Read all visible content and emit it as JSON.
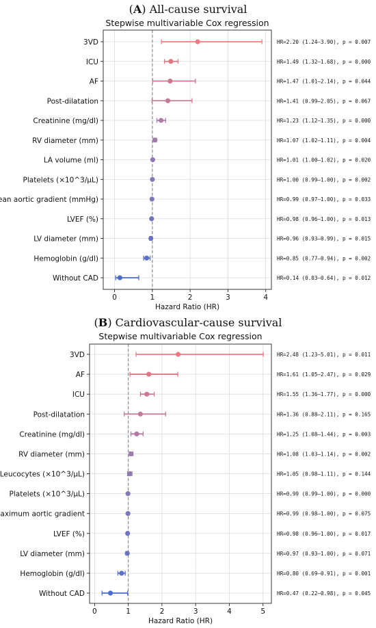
{
  "chart_data": [
    {
      "type": "forest",
      "panel_letter": "A",
      "panel_title": "All-cause survival",
      "title": "Stepwise multivariable Cox regression",
      "xlabel": "Hazard Ratio (HR)",
      "xlim": [
        -0.3,
        4.15
      ],
      "xticks": [
        "0",
        "1",
        "2",
        "3",
        "4"
      ],
      "reference_line": 1,
      "grid": true,
      "rows": [
        {
          "label": "3VD",
          "hr": 2.2,
          "lo": 1.24,
          "hi": 3.9,
          "text": "HR=2.20 (1.24–3.90), p = 0.007",
          "color": "#ee7b7f"
        },
        {
          "label": "ICU",
          "hr": 1.49,
          "lo": 1.32,
          "hi": 1.68,
          "text": "HR=1.49 (1.32–1.68), p = 0.000",
          "color": "#e07685"
        },
        {
          "label": "AF",
          "hr": 1.47,
          "lo": 1.01,
          "hi": 2.14,
          "text": "HR=1.47 (1.01–2.14), p = 0.044",
          "color": "#d07790"
        },
        {
          "label": "Post-dilatation",
          "hr": 1.41,
          "lo": 0.99,
          "hi": 2.05,
          "text": "HR=1.41 (0.99–2.05), p = 0.067",
          "color": "#c27a98"
        },
        {
          "label": "Creatinine (mg/dl)",
          "hr": 1.23,
          "lo": 1.12,
          "hi": 1.35,
          "text": "HR=1.23 (1.12–1.35), p = 0.000",
          "color": "#b07aa2"
        },
        {
          "label": "RV diameter (mm)",
          "hr": 1.07,
          "lo": 1.02,
          "hi": 1.11,
          "text": "HR=1.07 (1.02–1.11), p = 0.004",
          "color": "#a07aaa"
        },
        {
          "label": "LA volume (ml)",
          "hr": 1.01,
          "lo": 1.0,
          "hi": 1.02,
          "text": "HR=1.01 (1.00–1.02), p = 0.020",
          "color": "#8f79b1"
        },
        {
          "label": "Platelets (×10^3/μL)",
          "hr": 1.0,
          "lo": 0.99,
          "hi": 1.0,
          "text": "HR=1.00 (0.99–1.00), p = 0.002",
          "color": "#8478b5"
        },
        {
          "label": "Mean aortic gradient (mmHg)",
          "hr": 0.99,
          "lo": 0.97,
          "hi": 1.0,
          "text": "HR=0.99 (0.97–1.00), p = 0.033",
          "color": "#7a77ba"
        },
        {
          "label": "LVEF (%)",
          "hr": 0.98,
          "lo": 0.96,
          "hi": 1.0,
          "text": "HR=0.98 (0.96–1.00), p = 0.013",
          "color": "#7076be"
        },
        {
          "label": "LV diameter (mm)",
          "hr": 0.96,
          "lo": 0.93,
          "hi": 0.99,
          "text": "HR=0.96 (0.93–0.99), p = 0.015",
          "color": "#6874c2"
        },
        {
          "label": "Hemoglobin (g/dl)",
          "hr": 0.85,
          "lo": 0.77,
          "hi": 0.94,
          "text": "HR=0.85 (0.77–0.94), p = 0.002",
          "color": "#5c70c8"
        },
        {
          "label": "Without CAD",
          "hr": 0.14,
          "lo": 0.03,
          "hi": 0.64,
          "text": "HR=0.14 (0.03–0.64), p = 0.012",
          "color": "#4a6ad0"
        }
      ]
    },
    {
      "type": "forest",
      "panel_letter": "B",
      "panel_title": "Cardiovascular-cause survival",
      "title": "Stepwise multivariable Cox regression",
      "xlabel": "Hazard Ratio (HR)",
      "xlim": [
        -0.15,
        5.25
      ],
      "xticks": [
        "0",
        "1",
        "2",
        "3",
        "4",
        "5"
      ],
      "reference_line": 1,
      "grid": true,
      "rows": [
        {
          "label": "3VD",
          "hr": 2.48,
          "lo": 1.23,
          "hi": 5.01,
          "text": "HR=2.48 (1.23–5.01), p = 0.011",
          "color": "#ee7b7f"
        },
        {
          "label": "AF",
          "hr": 1.61,
          "lo": 1.05,
          "hi": 2.47,
          "text": "HR=1.61 (1.05–2.47), p = 0.029",
          "color": "#e07685"
        },
        {
          "label": "ICU",
          "hr": 1.55,
          "lo": 1.36,
          "hi": 1.77,
          "text": "HR=1.55 (1.36–1.77), p = 0.000",
          "color": "#d07790"
        },
        {
          "label": "Post-dilatation",
          "hr": 1.36,
          "lo": 0.88,
          "hi": 2.11,
          "text": "HR=1.36 (0.88–2.11), p = 0.165",
          "color": "#c27a98"
        },
        {
          "label": "Creatinine (mg/dl)",
          "hr": 1.25,
          "lo": 1.08,
          "hi": 1.44,
          "text": "HR=1.25 (1.08–1.44), p = 0.003",
          "color": "#b07aa2"
        },
        {
          "label": "RV diameter (mm)",
          "hr": 1.08,
          "lo": 1.03,
          "hi": 1.14,
          "text": "HR=1.08 (1.03–1.14), p = 0.002",
          "color": "#a07aaa"
        },
        {
          "label": "Leucocytes (×10^3/μL)",
          "hr": 1.05,
          "lo": 0.98,
          "hi": 1.11,
          "text": "HR=1.05 (0.98–1.11), p = 0.144",
          "color": "#8f79b1"
        },
        {
          "label": "Platelets (×10^3/μL)",
          "hr": 0.99,
          "lo": 0.99,
          "hi": 1.0,
          "text": "HR=0.99 (0.99–1.00), p = 0.000",
          "color": "#8478b5"
        },
        {
          "label": "Maximum aortic gradient",
          "hr": 0.99,
          "lo": 0.98,
          "hi": 1.0,
          "text": "HR=0.99 (0.98–1.00), p = 0.075",
          "color": "#7a77ba"
        },
        {
          "label": "LVEF (%)",
          "hr": 0.98,
          "lo": 0.96,
          "hi": 1.0,
          "text": "HR=0.98 (0.96–1.00), p = 0.017",
          "color": "#7076be"
        },
        {
          "label": "LV diameter (mm)",
          "hr": 0.97,
          "lo": 0.93,
          "hi": 1.0,
          "text": "HR=0.97 (0.93–1.00), p = 0.071",
          "color": "#6874c2"
        },
        {
          "label": "Hemoglobin (g/dl)",
          "hr": 0.8,
          "lo": 0.69,
          "hi": 0.91,
          "text": "HR=0.80 (0.69–0.91), p = 0.001",
          "color": "#5c70c8"
        },
        {
          "label": "Without CAD",
          "hr": 0.47,
          "lo": 0.22,
          "hi": 0.98,
          "text": "HR=0.47 (0.22–0.98), p = 0.045",
          "color": "#4a6ad0"
        }
      ]
    }
  ]
}
